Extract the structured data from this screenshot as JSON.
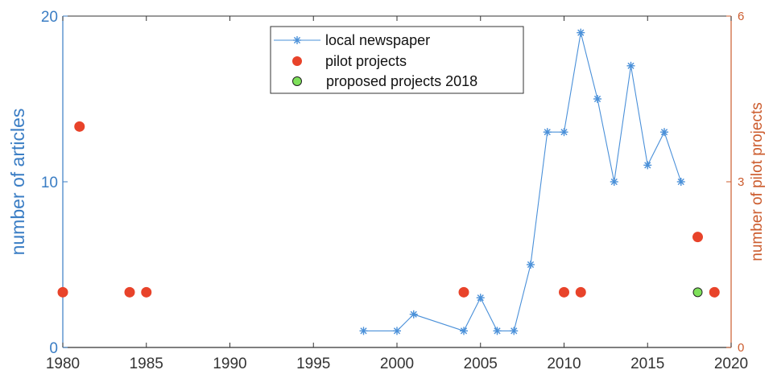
{
  "chart_data": {
    "type": "scatter",
    "x_range": [
      1980,
      2020
    ],
    "x_ticks": [
      1980,
      1985,
      1990,
      1995,
      2000,
      2005,
      2010,
      2015,
      2020
    ],
    "y_left": {
      "label": "number of articles",
      "range": [
        0,
        20
      ],
      "ticks": [
        0,
        10,
        20
      ]
    },
    "y_right": {
      "label": "number of pilot projects",
      "range": [
        0,
        6
      ],
      "ticks": [
        0,
        3,
        6
      ]
    },
    "grid": false,
    "legend_position": "top-center",
    "series": [
      {
        "name": "local newspaper",
        "kind": "line-star",
        "axis": "left",
        "color": "#4a90d9",
        "x": [
          1998,
          2000,
          2001,
          2004,
          2005,
          2006,
          2007,
          2008,
          2009,
          2010,
          2011,
          2012,
          2013,
          2014,
          2015,
          2016,
          2017
        ],
        "y": [
          1,
          1,
          2,
          1,
          3,
          1,
          1,
          5,
          13,
          13,
          19,
          15,
          10,
          17,
          11,
          13,
          10
        ]
      },
      {
        "name": "pilot projects",
        "kind": "dot",
        "axis": "right",
        "color": "#e8432a",
        "x": [
          1980,
          1981,
          1984,
          1985,
          2004,
          2010,
          2011,
          2018,
          2019
        ],
        "y": [
          1,
          4,
          1,
          1,
          1,
          1,
          1,
          2,
          1
        ]
      },
      {
        "name": " proposed projects 2018",
        "kind": "dot",
        "axis": "right",
        "color": "#7ee05a",
        "x": [
          2018
        ],
        "y": [
          1
        ]
      }
    ]
  }
}
